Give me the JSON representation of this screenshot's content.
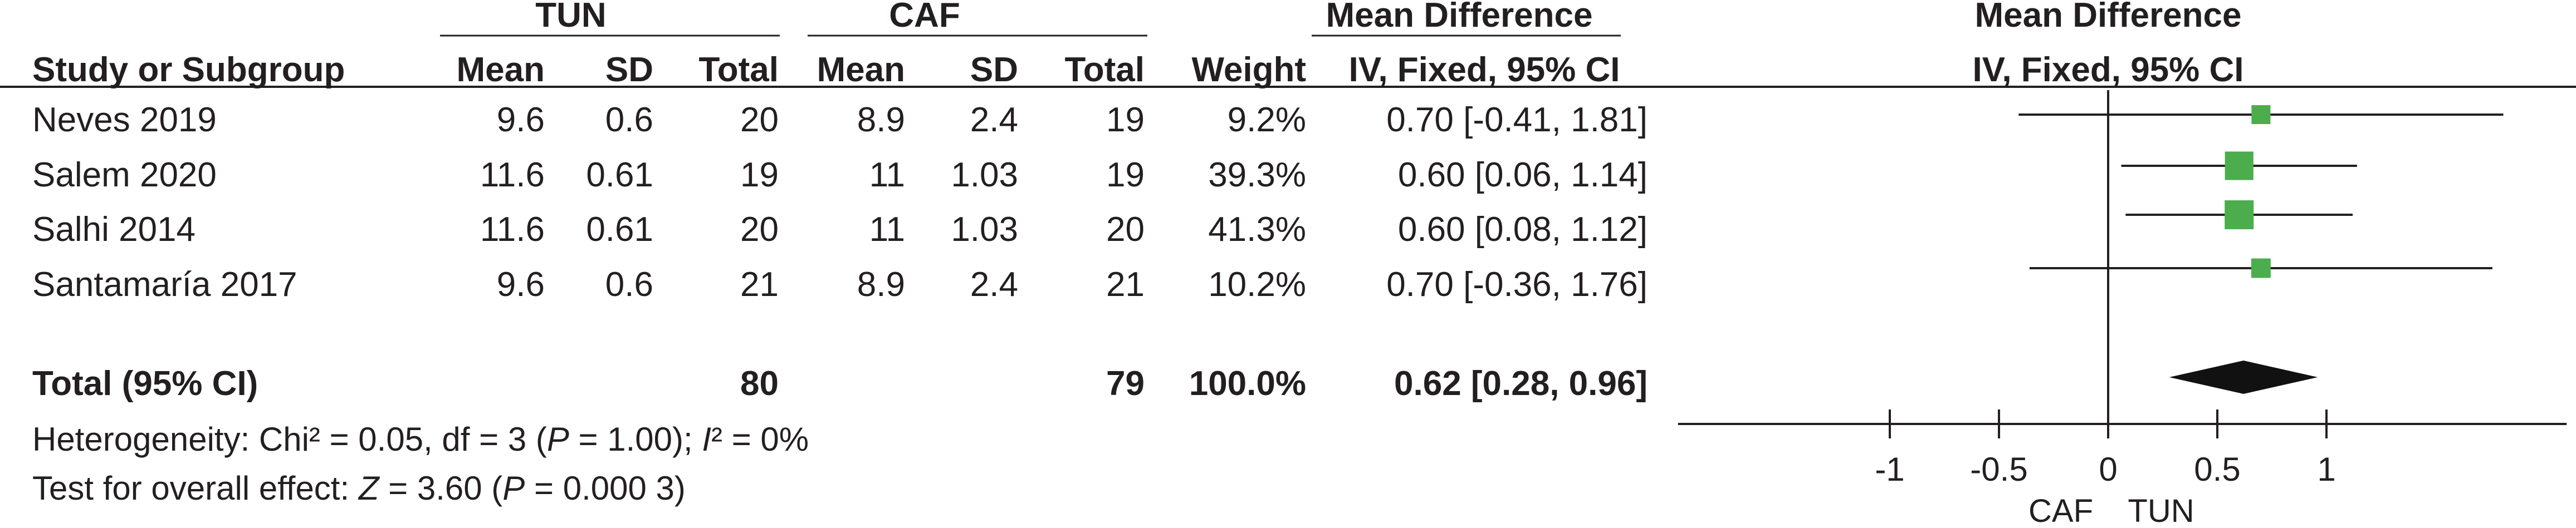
{
  "chart_data": {
    "type": "forest",
    "groups": {
      "experimental": "TUN",
      "control": "CAF"
    },
    "effect_header": "Mean Difference",
    "method_label": "IV, Fixed, 95% CI",
    "plot_header": "Mean Difference",
    "plot_method_label": "IV, Fixed, 95% CI",
    "columns": {
      "study": "Study or Subgroup",
      "mean": "Mean",
      "sd": "SD",
      "total": "Total",
      "weight": "Weight"
    },
    "studies": [
      {
        "name": "Neves 2019",
        "exp_mean": "9.6",
        "exp_sd": "0.6",
        "exp_total": "20",
        "ctl_mean": "8.9",
        "ctl_sd": "2.4",
        "ctl_total": "19",
        "weight_label": "9.2%",
        "ci_label": "0.70 [-0.41, 1.81]",
        "md": 0.7,
        "lo": -0.41,
        "hi": 1.81,
        "weight": 9.2
      },
      {
        "name": "Salem 2020",
        "exp_mean": "11.6",
        "exp_sd": "0.61",
        "exp_total": "19",
        "ctl_mean": "11",
        "ctl_sd": "1.03",
        "ctl_total": "19",
        "weight_label": "39.3%",
        "ci_label": "0.60 [0.06, 1.14]",
        "md": 0.6,
        "lo": 0.06,
        "hi": 1.14,
        "weight": 39.3
      },
      {
        "name": "Salhi 2014",
        "exp_mean": "11.6",
        "exp_sd": "0.61",
        "exp_total": "20",
        "ctl_mean": "11",
        "ctl_sd": "1.03",
        "ctl_total": "20",
        "weight_label": "41.3%",
        "ci_label": "0.60 [0.08, 1.12]",
        "md": 0.6,
        "lo": 0.08,
        "hi": 1.12,
        "weight": 41.3
      },
      {
        "name": "Santamaría 2017",
        "exp_mean": "9.6",
        "exp_sd": "0.6",
        "exp_total": "21",
        "ctl_mean": "8.9",
        "ctl_sd": "2.4",
        "ctl_total": "21",
        "weight_label": "10.2%",
        "ci_label": "0.70 [-0.36, 1.76]",
        "md": 0.7,
        "lo": -0.36,
        "hi": 1.76,
        "weight": 10.2
      }
    ],
    "total": {
      "name": "Total (95% CI)",
      "exp_total": "80",
      "ctl_total": "79",
      "weight_label": "100.0%",
      "ci_label": "0.62 [0.28, 0.96]",
      "md": 0.62,
      "lo": 0.28,
      "hi": 0.96
    },
    "heterogeneity": {
      "prefix": "Heterogeneity: Chi² = 0.05, df = 3 (",
      "p_symbol": "P",
      "p_text": " = 1.00); ",
      "i2_symbol": "I",
      "i2_text": "² = 0%"
    },
    "overall_effect": {
      "prefix": "Test for overall effect: ",
      "z_symbol": "Z",
      "z_text": " = 3.60 (",
      "p_symbol": "P",
      "p_text": " = 0.000 3)"
    },
    "x_ticks": [
      -1,
      -0.5,
      0,
      0.5,
      1
    ],
    "x_tick_labels": [
      "-1",
      "-0.5",
      "0",
      "0.5",
      "1"
    ],
    "xlim": [
      -1.97,
      2.1
    ],
    "favours_left": "CAF",
    "favours_right": "TUN",
    "colors": {
      "square": "#4cad4c",
      "diamond": "#111111",
      "text": "#231f20"
    }
  }
}
